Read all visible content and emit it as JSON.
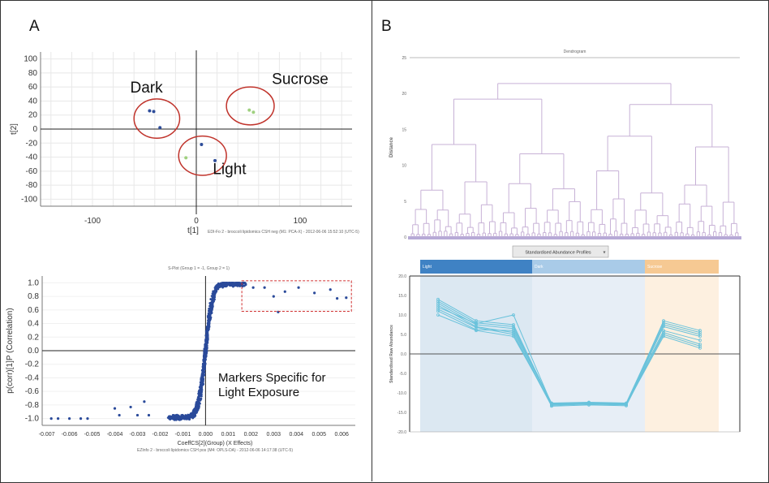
{
  "panels": {
    "A_label": "A",
    "B_label": "B"
  },
  "colors": {
    "scores_point": "#2e4d9a",
    "scores_point_green": "#9fd07f",
    "ellipse": "#c0332b",
    "splot_point": "#2a4a9a",
    "box": "#d03030",
    "dendro_line": "#c7b1d6",
    "profile_line": "#69c2db",
    "light_band": "#dce8f2",
    "dark_band": "#e7eef6",
    "sucrose_band": "#fdf0e0"
  },
  "chart_data": [
    {
      "type": "scatter",
      "panel": "A (top)",
      "xlabel": "t[1]",
      "ylabel": "t[2]",
      "xlim": [
        -150,
        150
      ],
      "ylim": [
        -110,
        110
      ],
      "xticks": [
        -100,
        0,
        100
      ],
      "yticks": [
        100,
        80,
        60,
        40,
        20,
        0,
        -20,
        -40,
        -60,
        -80,
        -100
      ],
      "grid": true,
      "footer": "EDI-Fo 2 - broccoli lipidomics CSH neg (M1: PCA-X) - 2012-06-06 15:52:10 (UTC-5)",
      "groups": [
        {
          "name": "Dark",
          "points": [
            [
              -45,
              26
            ],
            [
              -41,
              25
            ],
            [
              -35,
              2
            ]
          ]
        },
        {
          "name": "Sucrose",
          "points": [
            [
              51,
              27
            ],
            [
              55,
              24
            ]
          ]
        },
        {
          "name": "Light",
          "points": [
            [
              5,
              -22
            ],
            [
              18,
              -45
            ],
            [
              -10,
              -41
            ]
          ]
        }
      ]
    },
    {
      "type": "scatter",
      "panel": "A (bottom)",
      "title": "S-Plot (Group 1 = -1, Group 2 = 1)",
      "xlabel": "CoeffCS[2](Group) (X Effects)",
      "ylabel": "p(corr)[1]P (Correlation)",
      "xlim": [
        -0.0072,
        0.0066
      ],
      "ylim": [
        -1.1,
        1.1
      ],
      "xticks": [
        -0.007,
        -0.006,
        -0.005,
        -0.004,
        -0.003,
        -0.002,
        -0.001,
        0,
        0.001,
        0.002,
        0.003,
        0.004,
        0.005,
        0.006
      ],
      "yticks": [
        1.0,
        0.8,
        0.6,
        0.4,
        0.2,
        0.0,
        -0.2,
        -0.4,
        -0.6,
        -0.8,
        -1.0
      ],
      "annotation": "Markers Specific for\nLight Exposure",
      "footer": "EZInfo 2 - broccoli lipidomics CSH pos (M4: OPLS-DA) - 2012-06-06 14:17:38 (UTC-5)",
      "outliers": [
        [
          -0.0068,
          -1.0
        ],
        [
          -0.0065,
          -1.0
        ],
        [
          -0.006,
          -1.0
        ],
        [
          -0.0055,
          -1.0
        ],
        [
          -0.0052,
          -1.0
        ],
        [
          -0.004,
          -0.85
        ],
        [
          -0.0038,
          -0.95
        ],
        [
          -0.0033,
          -0.83
        ],
        [
          -0.003,
          -0.95
        ],
        [
          -0.0027,
          -0.75
        ],
        [
          -0.0025,
          -0.95
        ],
        [
          0.0021,
          0.93
        ],
        [
          0.0026,
          0.93
        ],
        [
          0.003,
          0.8
        ],
        [
          0.0035,
          0.87
        ],
        [
          0.0041,
          0.93
        ],
        [
          0.0048,
          0.85
        ],
        [
          0.0055,
          0.9
        ],
        [
          0.0058,
          0.77
        ],
        [
          0.0062,
          0.78
        ],
        [
          0.0032,
          0.57
        ]
      ]
    },
    {
      "type": "line",
      "panel": "B (top)",
      "title": "Dendrogram",
      "ylabel": "Distance",
      "ylim": [
        0,
        25
      ],
      "yticks": [
        25,
        20,
        15,
        10,
        5,
        0
      ]
    },
    {
      "type": "line",
      "panel": "B (bottom)",
      "title": "Standardised Abundance Profiles",
      "ylabel": "Standardised Raw Abundance",
      "ylim": [
        -20,
        20
      ],
      "yticks": [
        20,
        15,
        10,
        5,
        0,
        -5,
        -10,
        -15,
        -20
      ],
      "groups": [
        "Light",
        "Dark",
        "Sucrose"
      ],
      "series": [
        {
          "values": [
            14.0,
            8.5,
            7.5,
            -13.0,
            -12.8,
            -13.0,
            8.5,
            6.0
          ]
        },
        {
          "values": [
            13.5,
            8.0,
            7.0,
            -12.6,
            -12.4,
            -12.6,
            8.0,
            5.5
          ]
        },
        {
          "values": [
            13.0,
            7.5,
            6.5,
            -12.8,
            -12.6,
            -12.8,
            7.5,
            5.0
          ]
        },
        {
          "values": [
            12.5,
            7.0,
            5.5,
            -13.2,
            -12.9,
            -13.1,
            7.0,
            4.5
          ]
        },
        {
          "values": [
            12.0,
            7.8,
            10.0,
            -12.9,
            -12.7,
            -12.9,
            6.0,
            3.5
          ]
        },
        {
          "values": [
            11.5,
            6.8,
            5.0,
            -13.4,
            -13.1,
            -13.3,
            5.5,
            2.5
          ]
        },
        {
          "values": [
            11.0,
            6.2,
            6.0,
            -12.7,
            -12.5,
            -12.7,
            5.0,
            2.0
          ]
        },
        {
          "values": [
            10.0,
            6.0,
            4.5,
            -13.0,
            -12.8,
            -13.0,
            4.5,
            1.5
          ]
        }
      ]
    }
  ]
}
